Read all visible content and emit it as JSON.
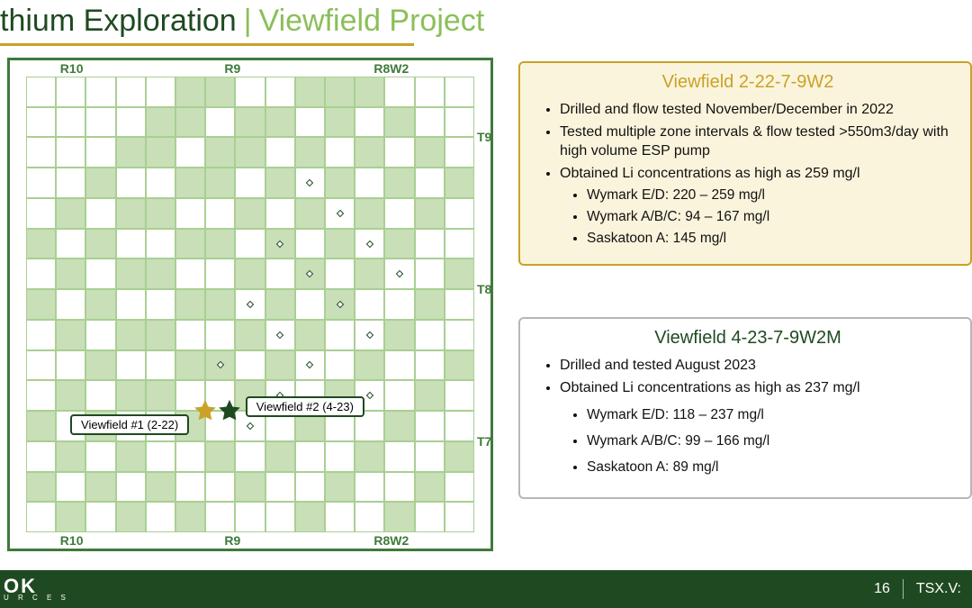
{
  "colors": {
    "dark_green": "#1f4a21",
    "light_green": "#8bbf5a",
    "pale_green_fill": "#c8dfb7",
    "pale_green_line": "#a9cf93",
    "map_border": "#3f7a3a",
    "gold": "#c9a227",
    "gold_box_fill": "#fbf4dc",
    "gold_box_border": "#c9a227",
    "grey_box_border": "#b7b7b7",
    "footer_bg": "#1f4a21",
    "underline": "#c9a227",
    "title_dark": "#1f4a21",
    "title_light": "#8bbf5a"
  },
  "title": {
    "left": "thium Exploration",
    "sep": "|",
    "right": "Viewfield Project"
  },
  "map": {
    "cols": 15,
    "rows": 15,
    "col_labels": [
      "R10",
      "R9",
      "R8W2"
    ],
    "row_labels": [
      "T9",
      "T8",
      "T7"
    ],
    "filled_cells": [
      [
        0,
        5
      ],
      [
        0,
        6
      ],
      [
        0,
        9
      ],
      [
        0,
        10
      ],
      [
        0,
        11
      ],
      [
        1,
        4
      ],
      [
        1,
        5
      ],
      [
        1,
        7
      ],
      [
        1,
        8
      ],
      [
        1,
        10
      ],
      [
        1,
        12
      ],
      [
        2,
        3
      ],
      [
        2,
        4
      ],
      [
        2,
        6
      ],
      [
        2,
        7
      ],
      [
        2,
        9
      ],
      [
        2,
        11
      ],
      [
        2,
        13
      ],
      [
        3,
        2
      ],
      [
        3,
        5
      ],
      [
        3,
        6
      ],
      [
        3,
        8
      ],
      [
        3,
        10
      ],
      [
        3,
        12
      ],
      [
        3,
        14
      ],
      [
        4,
        1
      ],
      [
        4,
        3
      ],
      [
        4,
        4
      ],
      [
        4,
        7
      ],
      [
        4,
        9
      ],
      [
        4,
        11
      ],
      [
        4,
        13
      ],
      [
        5,
        0
      ],
      [
        5,
        2
      ],
      [
        5,
        5
      ],
      [
        5,
        6
      ],
      [
        5,
        8
      ],
      [
        5,
        10
      ],
      [
        5,
        12
      ],
      [
        6,
        1
      ],
      [
        6,
        3
      ],
      [
        6,
        4
      ],
      [
        6,
        7
      ],
      [
        6,
        9
      ],
      [
        6,
        11
      ],
      [
        6,
        14
      ],
      [
        7,
        0
      ],
      [
        7,
        2
      ],
      [
        7,
        5
      ],
      [
        7,
        6
      ],
      [
        7,
        8
      ],
      [
        7,
        10
      ],
      [
        7,
        13
      ],
      [
        8,
        1
      ],
      [
        8,
        3
      ],
      [
        8,
        4
      ],
      [
        8,
        7
      ],
      [
        8,
        9
      ],
      [
        8,
        12
      ],
      [
        9,
        2
      ],
      [
        9,
        5
      ],
      [
        9,
        6
      ],
      [
        9,
        8
      ],
      [
        9,
        11
      ],
      [
        9,
        14
      ],
      [
        10,
        1
      ],
      [
        10,
        3
      ],
      [
        10,
        4
      ],
      [
        10,
        7
      ],
      [
        10,
        10
      ],
      [
        10,
        13
      ],
      [
        11,
        0
      ],
      [
        11,
        2
      ],
      [
        11,
        5
      ],
      [
        11,
        9
      ],
      [
        11,
        12
      ],
      [
        12,
        1
      ],
      [
        12,
        3
      ],
      [
        12,
        6
      ],
      [
        12,
        8
      ],
      [
        12,
        11
      ],
      [
        12,
        14
      ],
      [
        13,
        0
      ],
      [
        13,
        2
      ],
      [
        13,
        4
      ],
      [
        13,
        7
      ],
      [
        13,
        10
      ],
      [
        13,
        13
      ],
      [
        14,
        1
      ],
      [
        14,
        3
      ],
      [
        14,
        5
      ],
      [
        14,
        9
      ],
      [
        14,
        12
      ]
    ],
    "markers": [
      {
        "id": "vf1",
        "label": "Viewfield #1 (2-22)",
        "star_color": "#c9a227",
        "grid_rc": [
          11,
          6.0
        ],
        "label_side": "left"
      },
      {
        "id": "vf2",
        "label": "Viewfield #2 (4-23)",
        "star_color": "#1f4a21",
        "grid_rc": [
          11,
          6.8
        ],
        "label_side": "right"
      }
    ],
    "scatter_points": [
      [
        3,
        9
      ],
      [
        4,
        10
      ],
      [
        5,
        8
      ],
      [
        5,
        11
      ],
      [
        6,
        9
      ],
      [
        6,
        12
      ],
      [
        7,
        7
      ],
      [
        7,
        10
      ],
      [
        8,
        8
      ],
      [
        8,
        11
      ],
      [
        9,
        6
      ],
      [
        9,
        9
      ],
      [
        10,
        8
      ],
      [
        10,
        11
      ],
      [
        11,
        7
      ]
    ]
  },
  "box1": {
    "title": "Viewfield 2-22-7-9W2",
    "bullets": [
      "Drilled and flow tested November/December in 2022",
      "Tested multiple zone intervals & flow tested >550m3/day with high volume ESP pump",
      "Obtained Li concentrations as high as 259 mg/l"
    ],
    "sub_bullets": [
      "Wymark E/D: 220 – 259 mg/l",
      "Wymark A/B/C: 94 – 167 mg/l",
      "Saskatoon A: 145 mg/l"
    ]
  },
  "box2": {
    "title": "Viewfield 4-23-7-9W2M",
    "bullets": [
      "Drilled and tested August 2023",
      "Obtained Li concentrations as high as 237 mg/l"
    ],
    "sub_bullets": [
      "Wymark E/D: 118 – 237 mg/l",
      "Wymark A/B/C: 99 – 166 mg/l",
      "Saskatoon A: 89 mg/l"
    ]
  },
  "footer": {
    "logo_top": "OK",
    "logo_sub": "U R C E S",
    "page": "16",
    "exchange": "TSX.V:"
  }
}
